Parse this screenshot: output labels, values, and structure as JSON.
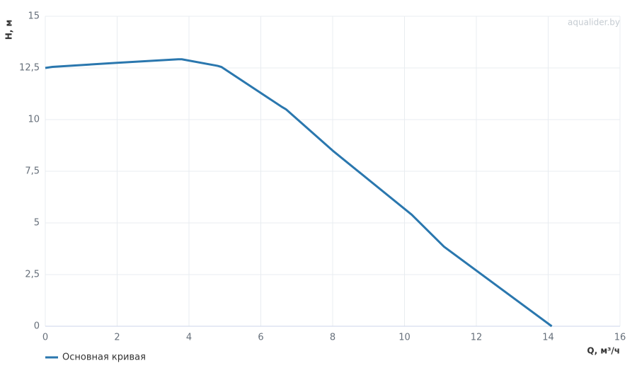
{
  "chart_data": {
    "type": "line",
    "watermark": "aqualider.by",
    "x_label": "Q, м³/ч",
    "y_label": "H, м",
    "series": [
      {
        "name": "Основная кривая",
        "color": "#2a77ae",
        "x": [
          0,
          0.2,
          2,
          3.7,
          3.8,
          4.8,
          4.9,
          6.6,
          6.7,
          8,
          10.2,
          11.1,
          14.1
        ],
        "values": [
          12.5,
          12.55,
          12.75,
          12.92,
          12.92,
          12.6,
          12.55,
          10.6,
          10.5,
          8.5,
          5.4,
          3.85,
          0
        ]
      }
    ],
    "xlim": [
      0,
      16
    ],
    "xticks": [
      0,
      2,
      4,
      6,
      8,
      10,
      12,
      14,
      16
    ],
    "ylim": [
      0,
      15
    ],
    "yticks": [
      0,
      {
        "value": 2.5,
        "label": "2,5"
      },
      5,
      {
        "value": 7.5,
        "label": "7,5"
      },
      10,
      {
        "value": 12.5,
        "label": "12,5"
      },
      15
    ],
    "grid": true,
    "legend": "bottom-left"
  }
}
